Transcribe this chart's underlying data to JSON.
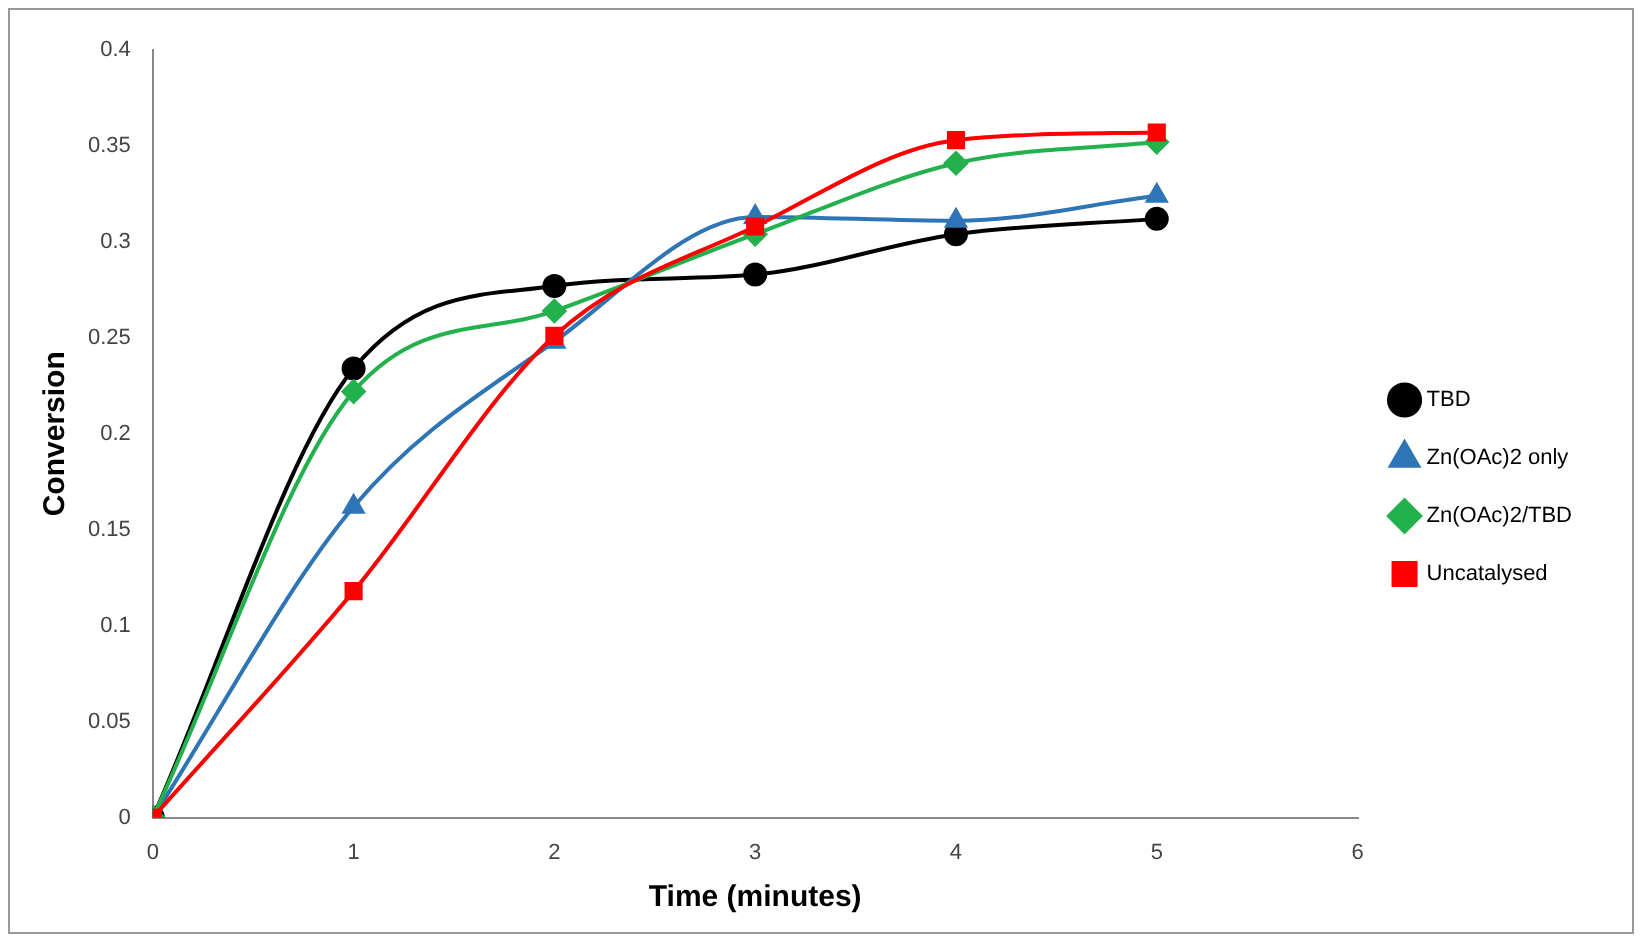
{
  "chart_data": {
    "type": "line",
    "xlabel": "Time (minutes)",
    "ylabel": "Conversion",
    "x": [
      0,
      1,
      2,
      3,
      4,
      5
    ],
    "xlim": [
      0,
      6
    ],
    "xticks": [
      0,
      1,
      2,
      3,
      4,
      5,
      6
    ],
    "ylim": [
      0,
      0.4
    ],
    "yticks": [
      0,
      0.05,
      0.1,
      0.15,
      0.2,
      0.25,
      0.3,
      0.35,
      0.4
    ],
    "grid": false,
    "legend": "right",
    "series": [
      {
        "name": "TBD",
        "color": "#000000",
        "marker": "circle",
        "values": [
          0,
          0.234,
          0.277,
          0.283,
          0.304,
          0.312
        ]
      },
      {
        "name": "Zn(OAc)2 only",
        "color": "#2e75b6",
        "marker": "triangle",
        "values": [
          0,
          0.162,
          0.248,
          0.313,
          0.311,
          0.324
        ]
      },
      {
        "name": "Zn(OAc)2/TBD",
        "color": "#22b14c",
        "marker": "diamond",
        "values": [
          0,
          0.222,
          0.264,
          0.304,
          0.341,
          0.352
        ]
      },
      {
        "name": "Uncatalysed",
        "color": "#ff0000",
        "marker": "square",
        "values": [
          0,
          0.118,
          0.251,
          0.308,
          0.353,
          0.357
        ]
      }
    ]
  }
}
